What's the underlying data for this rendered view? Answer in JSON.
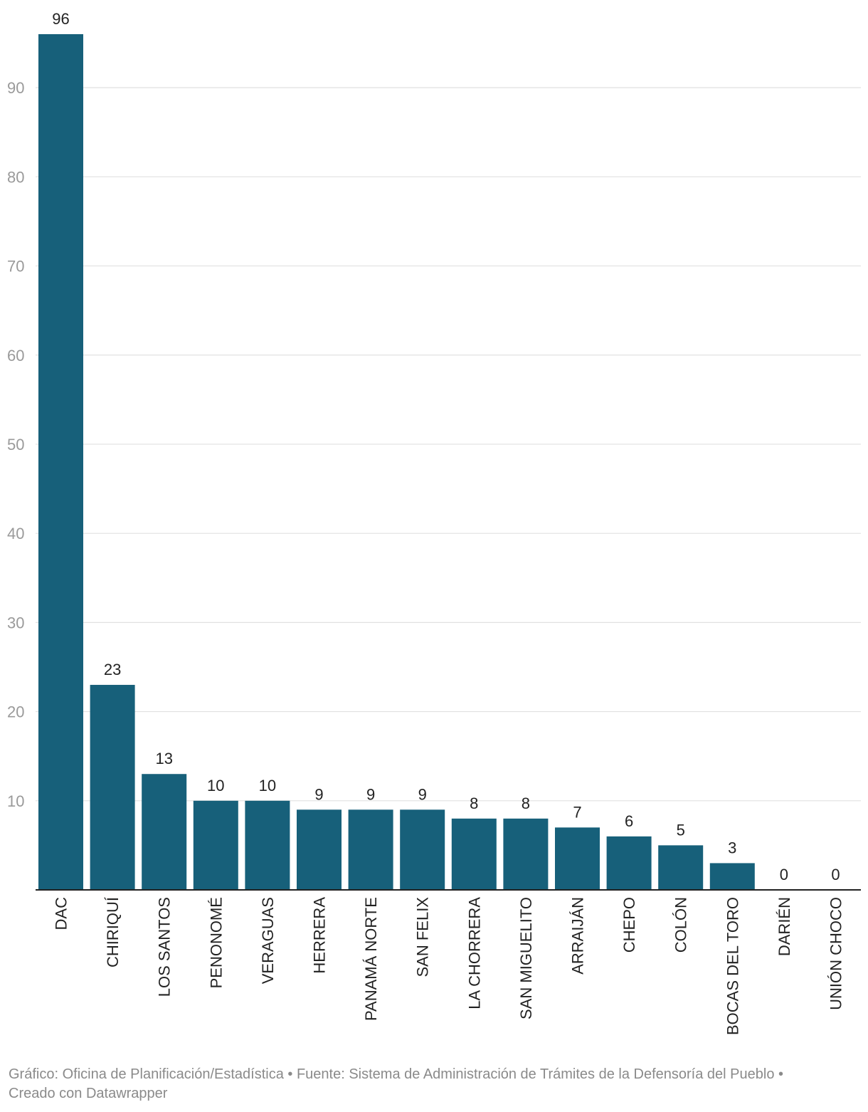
{
  "chart_data": {
    "type": "bar",
    "title": "",
    "xlabel": "",
    "ylabel": "",
    "ylim": [
      0,
      96
    ],
    "yticks": [
      10,
      20,
      30,
      40,
      50,
      60,
      70,
      80,
      90
    ],
    "grid": true,
    "categories": [
      "DAC",
      "CHIRIQUÍ",
      "LOS SANTOS",
      "PENONOMÉ",
      "VERAGUAS",
      "HERRERA",
      "PANAMÁ NORTE",
      "SAN FELIX",
      "LA CHORRERA",
      "SAN MIGUELITO",
      "ARRAIJÁN",
      "CHEPO",
      "COLÓN",
      "BOCAS DEL TORO",
      "DARIÉN",
      "UNIÓN CHOCO"
    ],
    "values": [
      96,
      23,
      13,
      10,
      10,
      9,
      9,
      9,
      8,
      8,
      7,
      6,
      5,
      3,
      0,
      0
    ],
    "colors": {
      "bar": "#17607a",
      "grid": "#e1e1e1",
      "axis": "#222222",
      "tick_text": "#9a9a9a",
      "label_text": "#222222"
    }
  },
  "footer": {
    "line1": "Gráfico: Oficina de Planificación/Estadística • Fuente: Sistema de Administración de Trámites de la Defensoría del Pueblo •",
    "line2": "Creado con Datawrapper"
  }
}
